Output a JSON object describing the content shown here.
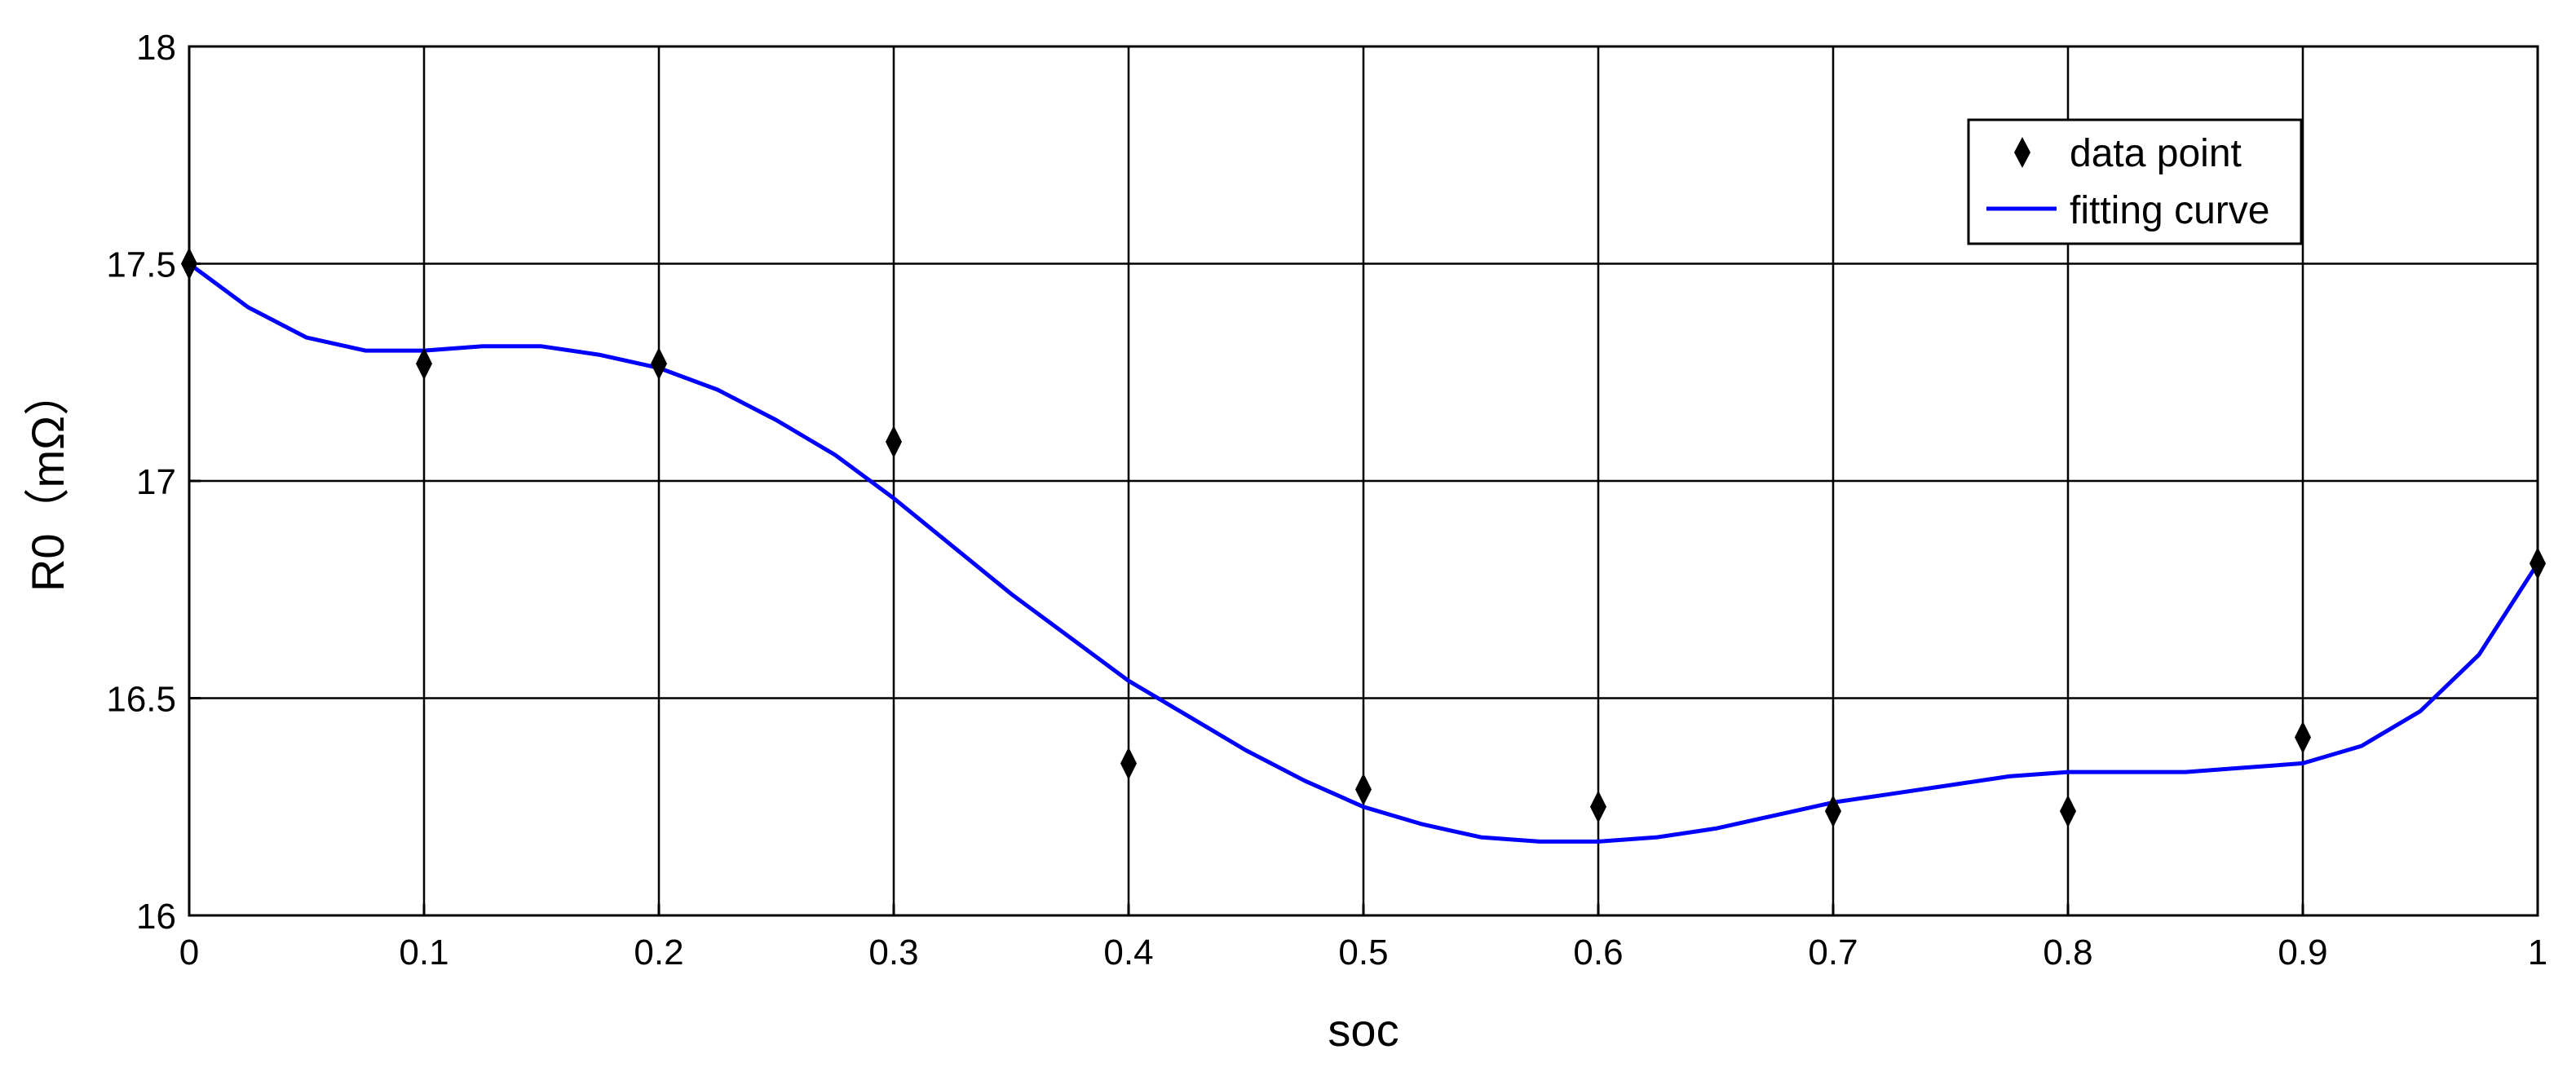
{
  "chart_data": {
    "type": "line",
    "xlabel": "soc",
    "ylabel": "R0（mΩ）",
    "xlim": [
      0,
      1
    ],
    "ylim": [
      16,
      18
    ],
    "xticks": [
      {
        "value": 0,
        "label": "0"
      },
      {
        "value": 0.1,
        "label": "0.1"
      },
      {
        "value": 0.2,
        "label": "0.2"
      },
      {
        "value": 0.3,
        "label": "0.3"
      },
      {
        "value": 0.4,
        "label": "0.4"
      },
      {
        "value": 0.5,
        "label": "0.5"
      },
      {
        "value": 0.6,
        "label": "0.6"
      },
      {
        "value": 0.7,
        "label": "0.7"
      },
      {
        "value": 0.8,
        "label": "0.8"
      },
      {
        "value": 0.9,
        "label": "0.9"
      },
      {
        "value": 1,
        "label": "1"
      }
    ],
    "yticks": [
      {
        "value": 16,
        "label": "16"
      },
      {
        "value": 16.5,
        "label": "16.5"
      },
      {
        "value": 17,
        "label": "17"
      },
      {
        "value": 17.5,
        "label": "17.5"
      },
      {
        "value": 18,
        "label": "18"
      }
    ],
    "grid": true,
    "legend": {
      "placement": "top-right",
      "entries": [
        {
          "name": "data point",
          "marker": "diamond"
        },
        {
          "name": "fitting curve",
          "marker": "line"
        }
      ]
    },
    "series": [
      {
        "name": "data point",
        "kind": "scatter",
        "color": "#000000",
        "x": [
          0,
          0.1,
          0.2,
          0.3,
          0.4,
          0.5,
          0.6,
          0.7,
          0.8,
          0.9,
          1.0
        ],
        "y": [
          17.5,
          17.27,
          17.27,
          17.09,
          16.35,
          16.29,
          16.25,
          16.24,
          16.24,
          16.41,
          16.81
        ]
      },
      {
        "name": "fitting curve",
        "kind": "line",
        "color": "#0000ff",
        "x": [
          0,
          0.025,
          0.05,
          0.075,
          0.1,
          0.125,
          0.15,
          0.175,
          0.2,
          0.225,
          0.25,
          0.275,
          0.3,
          0.325,
          0.35,
          0.375,
          0.4,
          0.425,
          0.45,
          0.475,
          0.5,
          0.525,
          0.55,
          0.575,
          0.6,
          0.625,
          0.65,
          0.675,
          0.7,
          0.725,
          0.75,
          0.775,
          0.8,
          0.825,
          0.85,
          0.875,
          0.9,
          0.925,
          0.95,
          0.975,
          1.0
        ],
        "y": [
          17.5,
          17.4,
          17.33,
          17.3,
          17.3,
          17.31,
          17.31,
          17.29,
          17.26,
          17.21,
          17.14,
          17.06,
          16.96,
          16.85,
          16.74,
          16.64,
          16.54,
          16.46,
          16.38,
          16.31,
          16.25,
          16.21,
          16.18,
          16.17,
          16.17,
          16.18,
          16.2,
          16.23,
          16.26,
          16.28,
          16.3,
          16.32,
          16.33,
          16.33,
          16.33,
          16.34,
          16.35,
          16.39,
          16.47,
          16.6,
          16.81
        ]
      }
    ]
  }
}
